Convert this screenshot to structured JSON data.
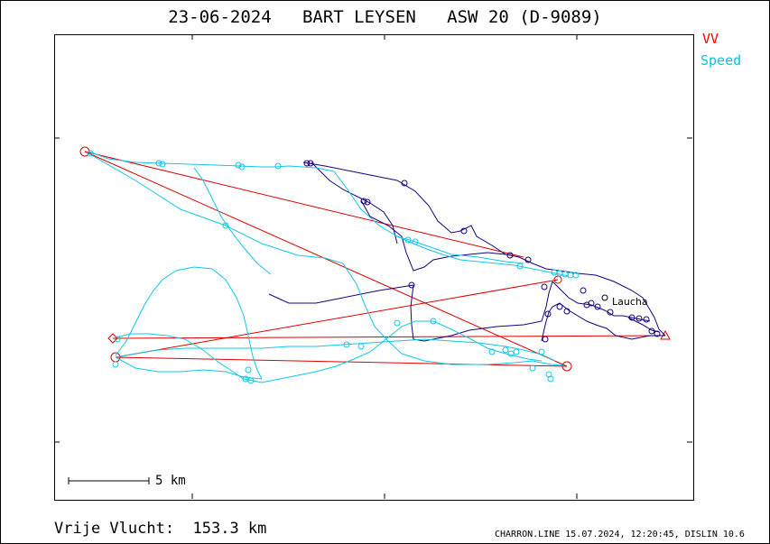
{
  "title": "23-06-2024   BART LEYSEN   ASW 20 (D-9089)",
  "legend": {
    "vv": {
      "label": "VV",
      "color": "#ff0000"
    },
    "speed": {
      "label": "Speed",
      "color": "#00c8e8"
    }
  },
  "track_colors": {
    "vario": "#1a0080",
    "speed": "#10c8e8",
    "task": "#e00000"
  },
  "scale": {
    "label": "5 km"
  },
  "place": {
    "label": "Laucha"
  },
  "footer": {
    "distance": "Vrije Vlucht:  153.3 km",
    "software": "CHARRON.LINE 15.07.2024, 12:20:45, DISLIN 10.6"
  }
}
